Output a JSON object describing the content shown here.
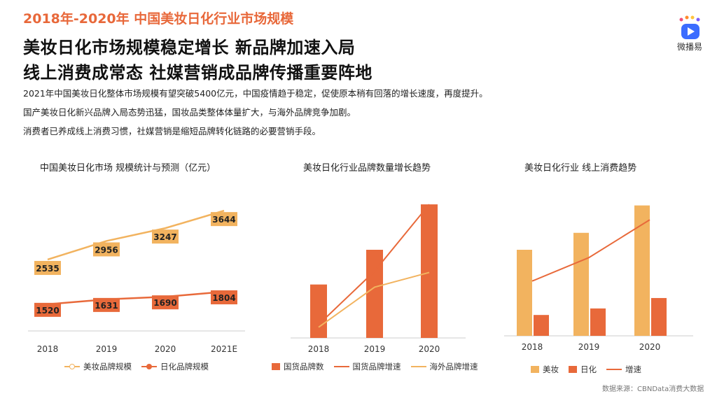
{
  "header": {
    "section_title": "2018年-2020年 中国美妆日化行业市场规模",
    "headline_line1": "美妆日化市场规模稳定增长 新品牌加速入局",
    "headline_line2": "线上消费成常态 社媒营销成品牌传播重要阵地"
  },
  "bullets": [
    "2021年中国美妆日化整体市场规模有望突破5400亿元，中国疫情趋于稳定，促使原本稍有回落的增长速度，再度提升。",
    "国产美妆日化新兴品牌入局态势迅猛，国妆品类整体体量扩大，与海外品牌竞争加剧。",
    "消费者已养成线上消费习惯，社媒营销是缩短品牌转化链路的必要营销手段。"
  ],
  "logo": {
    "text": "微播易",
    "icon": "play-logo-icon"
  },
  "colors": {
    "accent": "#e8683a",
    "light_orange": "#f2b35f",
    "dark_orange": "#e8693a"
  },
  "chart_data": [
    {
      "type": "line",
      "title": "中国美妆日化市场 规模统计与预测（亿元）",
      "categories": [
        "2018",
        "2019",
        "2020",
        "2021E"
      ],
      "series": [
        {
          "name": "美妆品牌规模",
          "values": [
            2535,
            2956,
            3247,
            3644
          ],
          "color": "#f2b35f"
        },
        {
          "name": "日化品牌规模",
          "values": [
            1520,
            1631,
            1690,
            1804
          ],
          "color": "#e8693a"
        }
      ],
      "legend": "bottom",
      "grid": false
    },
    {
      "type": "bar",
      "title": "美妆日化行业品牌数量增长趋势",
      "categories": [
        "2018",
        "2019",
        "2020"
      ],
      "series": [
        {
          "name": "国货品牌数",
          "type": "bar",
          "values": [
            40,
            66,
            100
          ],
          "color": "#e8693a"
        },
        {
          "name": "国货品牌增速",
          "type": "line",
          "values": [
            10,
            50,
            100
          ],
          "color": "#e8693a"
        },
        {
          "name": "海外品牌增速",
          "type": "line",
          "values": [
            8,
            38,
            49
          ],
          "color": "#f2b35f"
        }
      ],
      "ylim": [
        0,
        110
      ],
      "legend": "bottom",
      "grid": false
    },
    {
      "type": "bar",
      "title": "美妆日化行业 线上消费趋势",
      "categories": [
        "2018",
        "2019",
        "2020"
      ],
      "series": [
        {
          "name": "美妆",
          "type": "bar",
          "values": [
            66,
            79,
            100
          ],
          "color": "#f2b35f"
        },
        {
          "name": "日化",
          "type": "bar",
          "values": [
            16,
            21,
            29
          ],
          "color": "#e8693a"
        },
        {
          "name": "增速",
          "type": "line",
          "values": [
            42,
            60,
            89
          ],
          "color": "#e8693a"
        }
      ],
      "ylim": [
        0,
        110
      ],
      "legend": "bottom",
      "grid": false
    }
  ],
  "source": "数据来源：CBNData消费大数据"
}
